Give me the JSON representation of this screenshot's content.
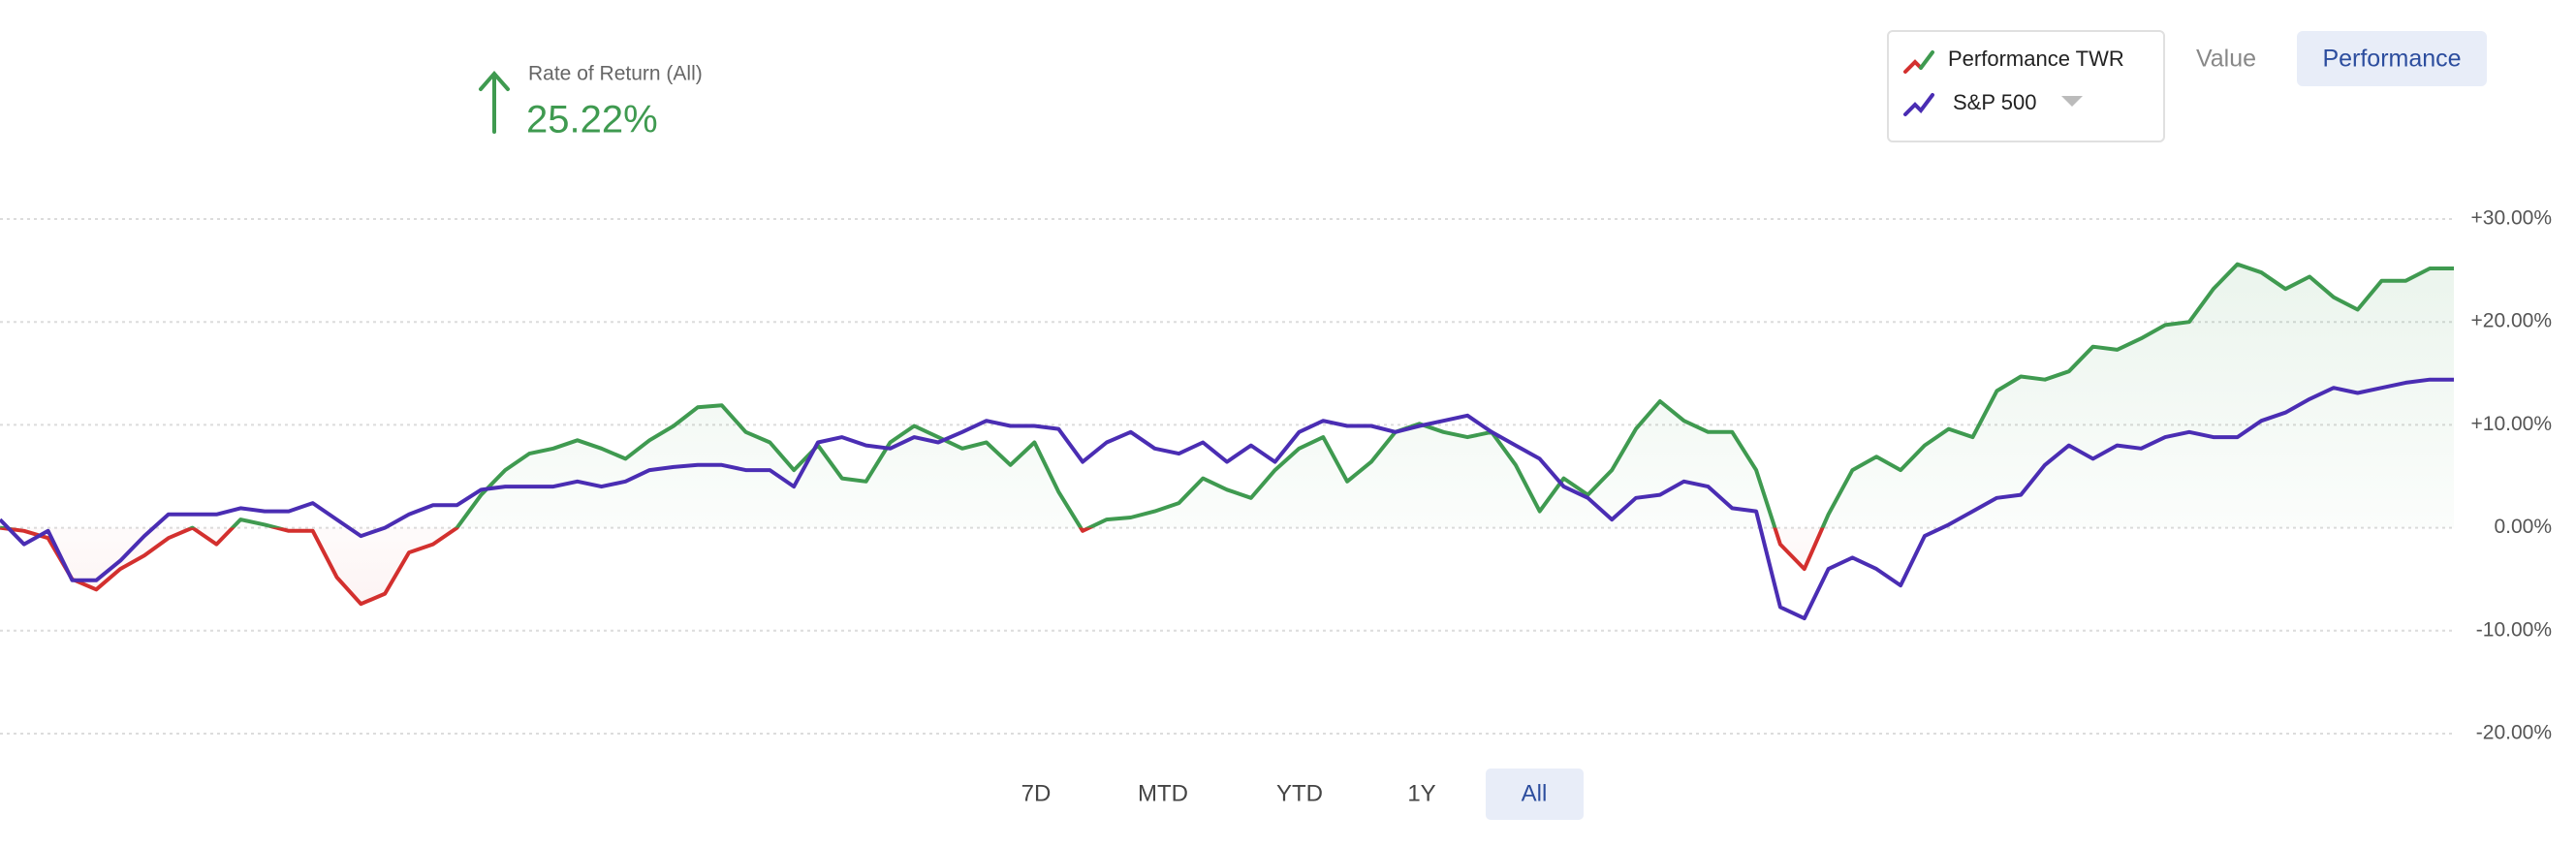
{
  "header": {
    "label": "Rate of Return (All)",
    "value": "25.22%"
  },
  "controls": {
    "views": [
      "Value",
      "Performance"
    ],
    "ranges": [
      "7D",
      "MTD",
      "YTD",
      "1Y",
      "All"
    ]
  },
  "chart_data": {
    "type": "line",
    "ylim": [
      -20,
      30
    ],
    "yticks": [
      {
        "value": 30,
        "label": "+30.00%"
      },
      {
        "value": 20,
        "label": "+20.00%"
      },
      {
        "value": 10,
        "label": "+10.00%"
      },
      {
        "value": 0,
        "label": "0.00%"
      },
      {
        "value": -10,
        "label": "-10.00%"
      },
      {
        "value": -20,
        "label": "-20.00%"
      }
    ],
    "grid": true,
    "series": [
      {
        "name": "Performance TWR",
        "color": "#3f9a50",
        "negative_color": "#d3302e",
        "values": [
          0,
          -0.3,
          -1,
          -5,
          -6,
          -4,
          -2.7,
          -1,
          0,
          -1.6,
          0.8,
          0.3,
          -0.3,
          -0.3,
          -4.8,
          -7.4,
          -6.4,
          -2.4,
          -1.6,
          0,
          3.2,
          5.6,
          7.2,
          7.7,
          8.5,
          7.7,
          6.7,
          8.5,
          9.9,
          11.7,
          11.9,
          9.3,
          8.3,
          5.6,
          8,
          4.8,
          4.5,
          8.3,
          9.9,
          8.8,
          7.7,
          8.3,
          6.1,
          8.3,
          3.5,
          -0.3,
          0.8,
          1,
          1.6,
          2.4,
          4.8,
          3.7,
          2.9,
          5.6,
          7.7,
          8.8,
          4.5,
          6.4,
          9.3,
          10.1,
          9.3,
          8.8,
          9.3,
          6.1,
          1.6,
          4.8,
          3.2,
          5.6,
          9.6,
          12.3,
          10.4,
          9.3,
          9.3,
          5.6,
          -1.6,
          -4,
          1.3,
          5.6,
          6.9,
          5.6,
          8,
          9.6,
          8.8,
          13.3,
          14.7,
          14.4,
          15.2,
          17.6,
          17.3,
          18.4,
          19.7,
          20,
          23.2,
          25.6,
          24.8,
          23.2,
          24.4,
          22.4,
          21.2,
          24,
          24,
          25.2,
          25.2
        ]
      },
      {
        "name": "S&P 500",
        "color": "#4a2db3",
        "values": [
          0.8,
          -1.6,
          -0.3,
          -5.1,
          -5.1,
          -3.2,
          -0.8,
          1.3,
          1.3,
          1.3,
          1.9,
          1.6,
          1.6,
          2.4,
          0.8,
          -0.8,
          0,
          1.3,
          2.2,
          2.2,
          3.7,
          4,
          4,
          4,
          4.5,
          4,
          4.5,
          5.6,
          5.9,
          6.1,
          6.1,
          5.6,
          5.6,
          4,
          8.3,
          8.8,
          8,
          7.7,
          8.8,
          8.3,
          9.3,
          10.4,
          9.9,
          9.9,
          9.6,
          6.4,
          8.3,
          9.3,
          7.7,
          7.2,
          8.3,
          6.4,
          8,
          6.4,
          9.3,
          10.4,
          9.9,
          9.9,
          9.3,
          9.9,
          10.4,
          10.9,
          9.3,
          8,
          6.7,
          4,
          2.9,
          0.8,
          2.9,
          3.2,
          4.5,
          4,
          1.9,
          1.6,
          -7.7,
          -8.8,
          -4,
          -2.9,
          -4,
          -5.6,
          -0.8,
          0.3,
          1.6,
          2.9,
          3.2,
          6.1,
          8,
          6.7,
          8,
          7.7,
          8.8,
          9.3,
          8.8,
          8.8,
          10.4,
          11.2,
          12.5,
          13.6,
          13.1,
          13.6,
          14.1,
          14.4,
          14.4
        ]
      }
    ]
  }
}
